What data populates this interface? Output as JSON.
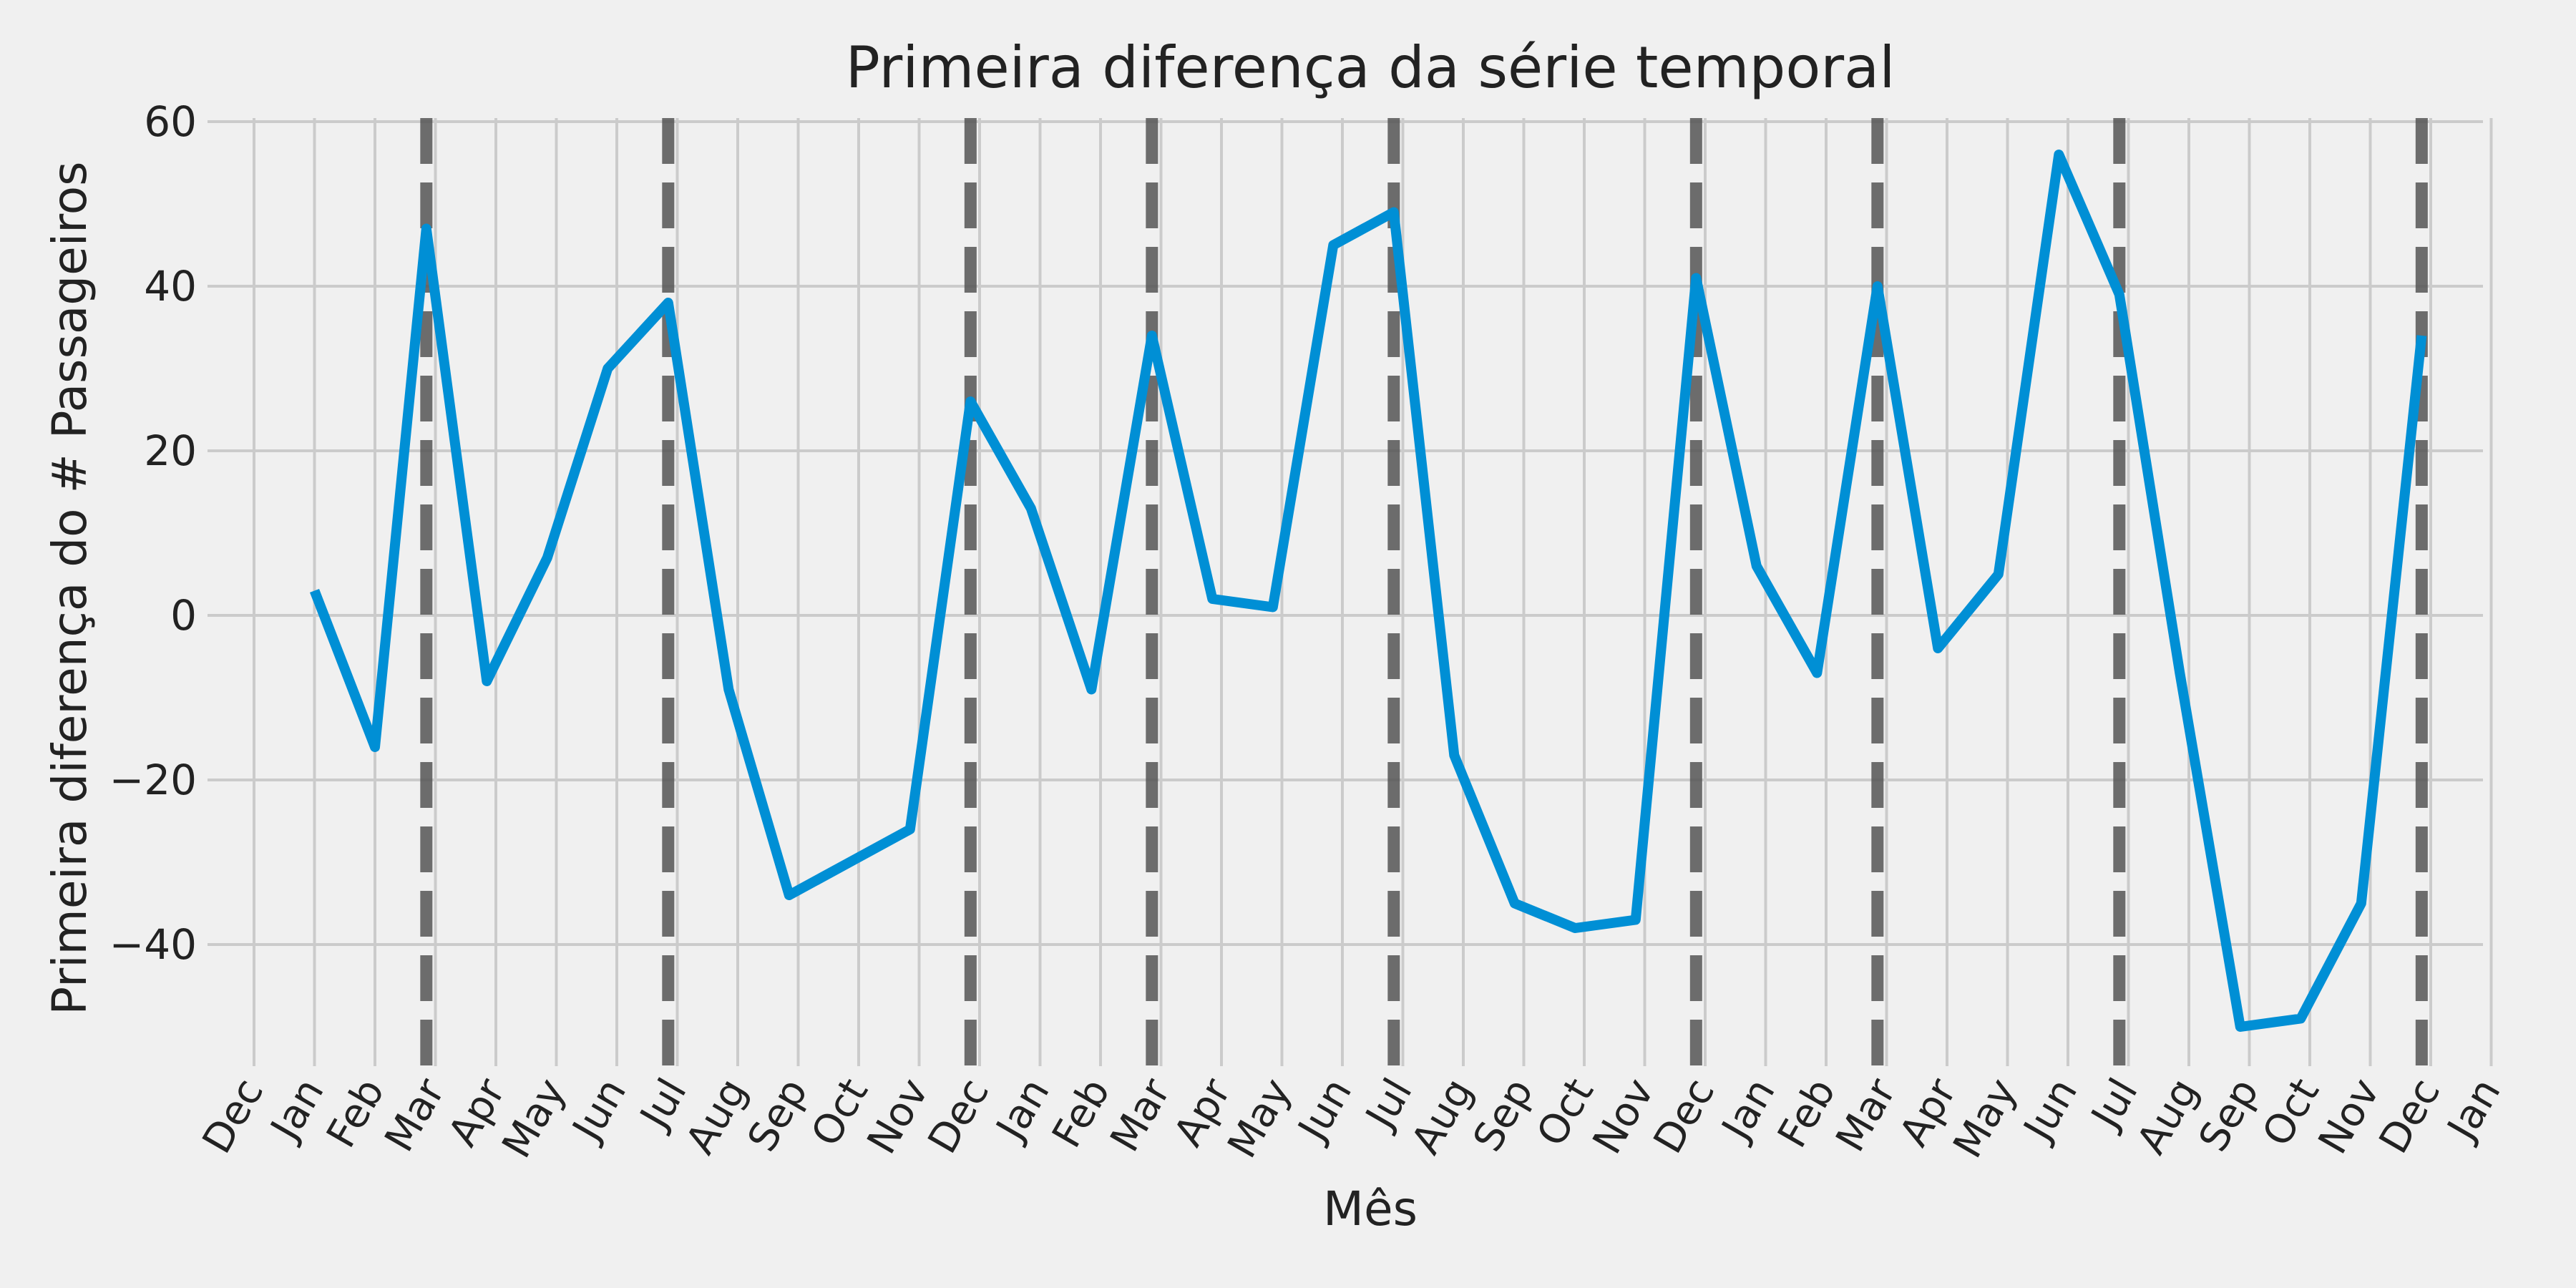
{
  "chart_data": {
    "type": "line",
    "title": "Primeira diferença da série temporal",
    "xlabel": "Mês",
    "ylabel": "Primeira diferença do # Passageiros",
    "x_tick_labels": [
      "Dec",
      "Jan",
      "Feb",
      "Mar",
      "Apr",
      "May",
      "Jun",
      "Jul",
      "Aug",
      "Sep",
      "Oct",
      "Nov",
      "Dec",
      "Jan",
      "Feb",
      "Mar",
      "Apr",
      "May",
      "Jun",
      "Jul",
      "Aug",
      "Sep",
      "Oct",
      "Nov",
      "Dec",
      "Jan",
      "Feb",
      "Mar",
      "Apr",
      "May",
      "Jun",
      "Jul",
      "Aug",
      "Sep",
      "Oct",
      "Nov",
      "Dec",
      "Jan"
    ],
    "y_ticks": [
      60,
      40,
      20,
      0,
      -20,
      -40
    ],
    "y_tick_labels": [
      "60",
      "40",
      "20",
      "0",
      "−20",
      "−40"
    ],
    "ylim": [
      -55,
      61
    ],
    "grid": true,
    "series": [
      {
        "color": "#008fd5",
        "points": [
          [
            1,
            3
          ],
          [
            2,
            -16
          ],
          [
            2.85,
            47
          ],
          [
            3.85,
            -8
          ],
          [
            4.85,
            7
          ],
          [
            5.85,
            30
          ],
          [
            6.85,
            38
          ],
          [
            7.85,
            -9
          ],
          [
            8.85,
            -34
          ],
          [
            9.85,
            -30
          ],
          [
            10.85,
            -26
          ],
          [
            11.85,
            26
          ],
          [
            12.85,
            13
          ],
          [
            13.85,
            -9
          ],
          [
            14.85,
            34
          ],
          [
            15.85,
            2
          ],
          [
            16.85,
            1
          ],
          [
            17.85,
            45
          ],
          [
            18.85,
            49
          ],
          [
            19.85,
            -17
          ],
          [
            20.85,
            -35
          ],
          [
            21.85,
            -38
          ],
          [
            22.85,
            -37
          ],
          [
            23.85,
            41
          ],
          [
            24.85,
            6
          ],
          [
            25.85,
            -7
          ],
          [
            26.85,
            40
          ],
          [
            27.85,
            -4
          ],
          [
            28.85,
            5
          ],
          [
            29.85,
            56
          ],
          [
            30.85,
            39
          ],
          [
            31.85,
            -7
          ],
          [
            32.85,
            -50
          ],
          [
            33.85,
            -49
          ],
          [
            34.85,
            -35
          ],
          [
            35.85,
            34
          ]
        ]
      }
    ],
    "vertical_dashed_lines_x": [
      2.85,
      6.85,
      11.85,
      14.85,
      18.85,
      23.85,
      26.85,
      30.85,
      35.85
    ],
    "vertical_line_color": "#555555"
  }
}
